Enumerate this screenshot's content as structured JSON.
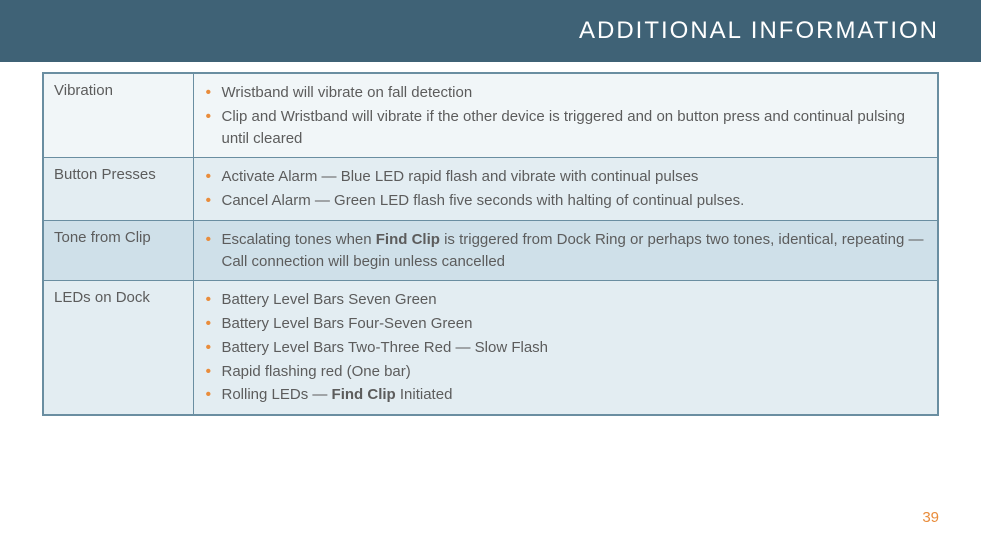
{
  "header": {
    "title": "ADDITIONAL INFORMATION"
  },
  "pageNumber": "39",
  "rows": [
    {
      "label": "Vibration",
      "shade": "light",
      "items": [
        {
          "segments": [
            {
              "text": "Wristband will vibrate on fall detection"
            }
          ]
        },
        {
          "segments": [
            {
              "text": "Clip and Wristband will vibrate if the other device is triggered  and on button press and continual pulsing until cleared"
            }
          ]
        }
      ]
    },
    {
      "label": "Button Presses",
      "shade": "alt",
      "items": [
        {
          "segments": [
            {
              "text": "Activate Alarm — Blue LED rapid flash and vibrate with continual pulses"
            }
          ]
        },
        {
          "segments": [
            {
              "text": "Cancel Alarm — Green LED flash five seconds with halting of continual pulses."
            }
          ]
        }
      ]
    },
    {
      "label": "Tone from Clip",
      "shade": "dark",
      "items": [
        {
          "segments": [
            {
              "text": "Escalating tones when "
            },
            {
              "text": "Find Clip",
              "bold": true
            },
            {
              "text": " is triggered from Dock Ring or perhaps two tones, identical, repeating — Call connection will begin unless cancelled"
            }
          ]
        }
      ]
    },
    {
      "label": "LEDs on Dock",
      "shade": "alt",
      "items": [
        {
          "segments": [
            {
              "text": "Battery Level Bars Seven Green"
            }
          ]
        },
        {
          "segments": [
            {
              "text": "Battery Level Bars Four-Seven Green"
            }
          ]
        },
        {
          "segments": [
            {
              "text": "Battery Level Bars Two-Three Red — Slow Flash"
            }
          ]
        },
        {
          "segments": [
            {
              "text": "Rapid flashing red (One bar)"
            }
          ]
        },
        {
          "segments": [
            {
              "text": "Rolling LEDs — "
            },
            {
              "text": "Find Clip",
              "bold": true
            },
            {
              "text": " Initiated"
            }
          ]
        }
      ]
    }
  ]
}
